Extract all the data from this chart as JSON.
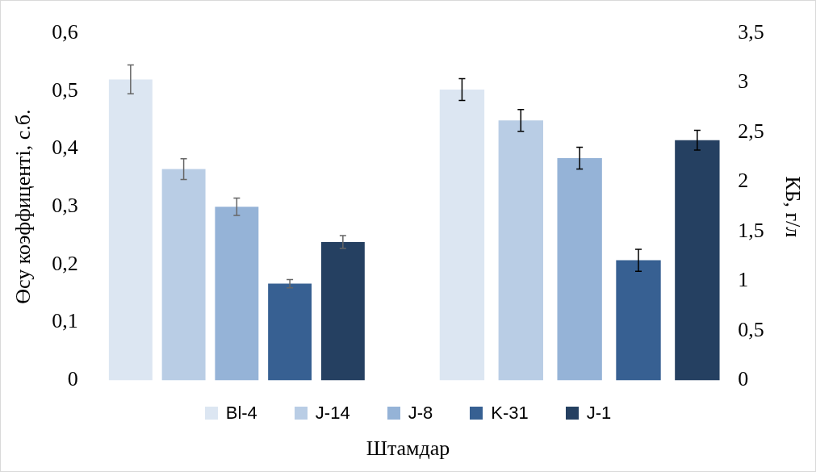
{
  "chart_data": [
    {
      "type": "bar",
      "xlabel": "Штамдар",
      "ylabel": "Өсу коэффиценті, с.б.",
      "categories": [
        null
      ],
      "series": [
        {
          "name": "Bl-4",
          "color": "#dce6f2",
          "values": [
            0.52
          ],
          "errors": [
            0.025
          ]
        },
        {
          "name": "J-14",
          "color": "#b9cde5",
          "values": [
            0.365
          ],
          "errors": [
            0.018
          ]
        },
        {
          "name": "J-8",
          "color": "#95b3d7",
          "values": [
            0.3
          ],
          "errors": [
            0.015
          ]
        },
        {
          "name": "K-31",
          "color": "#376092",
          "values": [
            0.167
          ],
          "errors": [
            0.007
          ]
        },
        {
          "name": "J-1",
          "color": "#254061",
          "values": [
            0.239
          ],
          "errors": [
            0.011
          ]
        }
      ],
      "ylim": [
        0,
        0.6
      ],
      "yticks": [
        {
          "value": 0,
          "label": "0"
        },
        {
          "value": 0.1,
          "label": "0,1"
        },
        {
          "value": 0.2,
          "label": "0,2"
        },
        {
          "value": 0.3,
          "label": "0,3"
        },
        {
          "value": 0.4,
          "label": "0,4"
        },
        {
          "value": 0.5,
          "label": "0,5"
        },
        {
          "value": 0.6,
          "label": "0,6"
        }
      ],
      "grid": false,
      "legend": "bottom"
    },
    {
      "type": "bar",
      "ylabel": "КБ, г/л",
      "categories": [
        null,
        null,
        null,
        null,
        null
      ],
      "grid": false,
      "series": [
        {
          "colors": [
            "#dce6f2",
            "#b9cde5",
            "#95b3d7",
            "#376092",
            "#254061"
          ],
          "values": [
            2.93,
            2.62,
            2.24,
            1.21,
            2.42
          ],
          "errors": [
            0.11,
            0.11,
            0.11,
            0.11,
            0.1
          ]
        }
      ],
      "ylim": [
        0,
        3.5
      ],
      "yticks": [
        {
          "value": 0,
          "label": "0"
        },
        {
          "value": 0.5,
          "label": "0,5"
        },
        {
          "value": 1,
          "label": "1"
        },
        {
          "value": 1.5,
          "label": "1,5"
        },
        {
          "value": 2,
          "label": "2"
        },
        {
          "value": 2.5,
          "label": "2,5"
        },
        {
          "value": 3,
          "label": "3"
        },
        {
          "value": 3.5,
          "label": "3,5"
        }
      ]
    }
  ]
}
